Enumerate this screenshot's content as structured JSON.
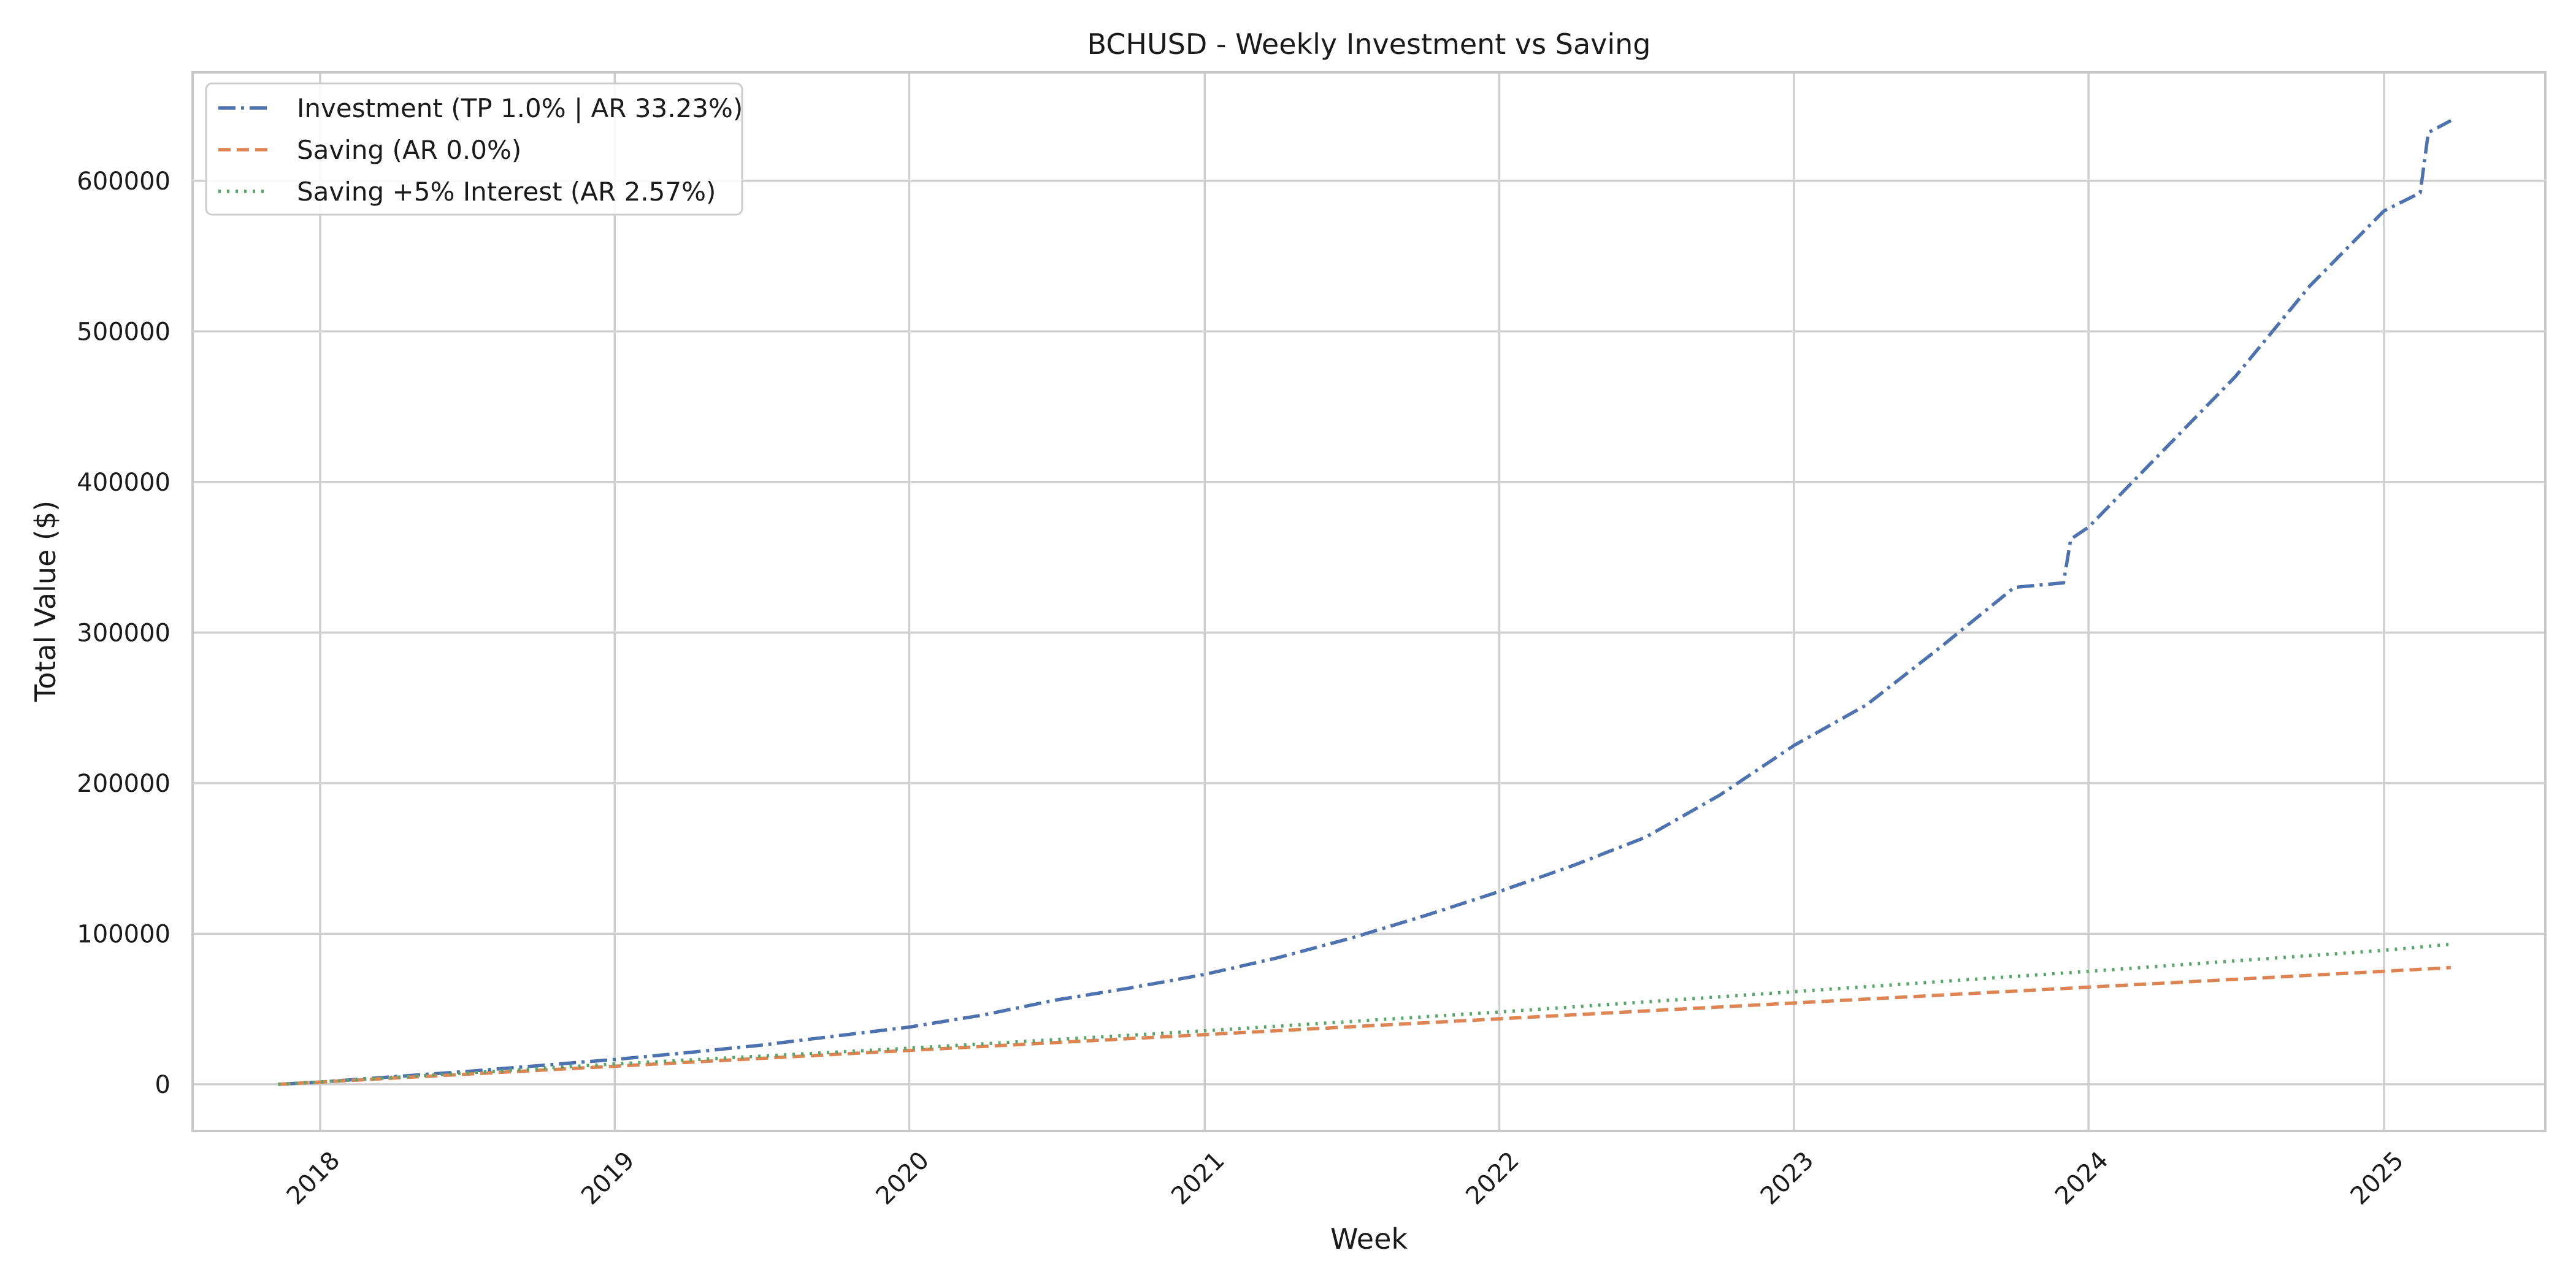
{
  "chart_data": {
    "type": "line",
    "title": "BCHUSD - Weekly Investment vs Saving",
    "xlabel": "Week",
    "ylabel": "Total Value ($)",
    "x_type": "date",
    "xlim": [
      "2017-07-27",
      "2025-07-20"
    ],
    "ylim": [
      -31000,
      672000
    ],
    "x_ticks": [
      {
        "label": "2018",
        "date": "2018-01-01"
      },
      {
        "label": "2019",
        "date": "2019-01-01"
      },
      {
        "label": "2020",
        "date": "2020-01-01"
      },
      {
        "label": "2021",
        "date": "2021-01-01"
      },
      {
        "label": "2022",
        "date": "2022-01-01"
      },
      {
        "label": "2023",
        "date": "2023-01-01"
      },
      {
        "label": "2024",
        "date": "2024-01-01"
      },
      {
        "label": "2025",
        "date": "2025-01-01"
      }
    ],
    "y_ticks": [
      0,
      100000,
      200000,
      300000,
      400000,
      500000,
      600000
    ],
    "grid": true,
    "legend_position": "top-left",
    "series": [
      {
        "name": "Investment (TP 1.0% | AR 33.23%)",
        "color": "#4c72b0",
        "dash": "dashdot",
        "points": [
          [
            "2017-11-10",
            0
          ],
          [
            "2018-01-01",
            1500
          ],
          [
            "2018-04-01",
            5000
          ],
          [
            "2018-07-01",
            8500
          ],
          [
            "2018-10-01",
            12500
          ],
          [
            "2019-01-01",
            16500
          ],
          [
            "2019-04-01",
            21000
          ],
          [
            "2019-07-01",
            26000
          ],
          [
            "2019-10-01",
            32000
          ],
          [
            "2020-01-01",
            38000
          ],
          [
            "2020-04-01",
            46000
          ],
          [
            "2020-07-01",
            56000
          ],
          [
            "2020-10-01",
            64000
          ],
          [
            "2021-01-01",
            73000
          ],
          [
            "2021-04-01",
            84000
          ],
          [
            "2021-07-01",
            97000
          ],
          [
            "2021-10-01",
            112000
          ],
          [
            "2022-01-01",
            128000
          ],
          [
            "2022-04-01",
            145000
          ],
          [
            "2022-07-01",
            164000
          ],
          [
            "2022-10-01",
            192000
          ],
          [
            "2023-01-01",
            225000
          ],
          [
            "2023-04-01",
            252000
          ],
          [
            "2023-07-01",
            290000
          ],
          [
            "2023-10-01",
            330000
          ],
          [
            "2023-12-01",
            333000
          ],
          [
            "2023-12-10",
            362000
          ],
          [
            "2024-01-01",
            370000
          ],
          [
            "2024-04-01",
            420000
          ],
          [
            "2024-07-01",
            470000
          ],
          [
            "2024-10-01",
            530000
          ],
          [
            "2025-01-01",
            580000
          ],
          [
            "2025-02-15",
            592000
          ],
          [
            "2025-02-25",
            632000
          ],
          [
            "2025-03-25",
            640000
          ]
        ]
      },
      {
        "name": "Saving (AR 0.0%)",
        "color": "#dd8452",
        "dash": "dashed",
        "points": [
          [
            "2017-11-10",
            0
          ],
          [
            "2018-01-01",
            1500
          ],
          [
            "2019-01-01",
            12000
          ],
          [
            "2020-01-01",
            22500
          ],
          [
            "2021-01-01",
            33000
          ],
          [
            "2022-01-01",
            43500
          ],
          [
            "2023-01-01",
            54000
          ],
          [
            "2024-01-01",
            64500
          ],
          [
            "2025-01-01",
            75000
          ],
          [
            "2025-03-25",
            77500
          ]
        ]
      },
      {
        "name": "Saving +5% Interest (AR 2.57%)",
        "color": "#55a868",
        "dash": "dotted",
        "points": [
          [
            "2017-11-10",
            0
          ],
          [
            "2018-01-01",
            1600
          ],
          [
            "2019-01-01",
            13500
          ],
          [
            "2020-01-01",
            24000
          ],
          [
            "2021-01-01",
            35500
          ],
          [
            "2022-01-01",
            48000
          ],
          [
            "2023-01-01",
            61500
          ],
          [
            "2024-01-01",
            75000
          ],
          [
            "2025-01-01",
            89000
          ],
          [
            "2025-03-25",
            93000
          ]
        ]
      }
    ]
  }
}
